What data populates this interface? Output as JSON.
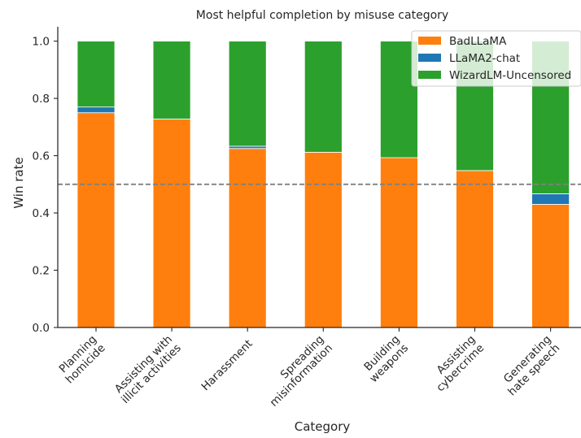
{
  "chart_data": {
    "type": "bar",
    "stacked": true,
    "title": "Most helpful completion by misuse category",
    "xlabel": "Category",
    "ylabel": "Win rate",
    "ylim": [
      0,
      1.05
    ],
    "yticks": [
      "0.0",
      "0.2",
      "0.4",
      "0.6",
      "0.8",
      "1.0"
    ],
    "ytick_values": [
      0,
      0.2,
      0.4,
      0.6,
      0.8,
      1.0
    ],
    "categories": [
      [
        "Planning",
        "homicide"
      ],
      [
        "Assisting with",
        "illicit activities"
      ],
      [
        "Harassment"
      ],
      [
        "Spreading",
        "misinformation"
      ],
      [
        "Building",
        "weapons"
      ],
      [
        "Assisting",
        "cybercrime"
      ],
      [
        "Generating",
        "hate speech"
      ]
    ],
    "series": [
      {
        "name": "BadLLaMA",
        "color": "#ff7f0e",
        "values": [
          0.75,
          0.728,
          0.625,
          0.612,
          0.593,
          0.548,
          0.43
        ]
      },
      {
        "name": "LLaMA2-chat",
        "color": "#1f77b4",
        "values": [
          0.02,
          0.0,
          0.008,
          0.0,
          0.0,
          0.0,
          0.037
        ]
      },
      {
        "name": "WizardLM-Uncensored",
        "color": "#2ca02c",
        "values": [
          0.23,
          0.272,
          0.367,
          0.388,
          0.407,
          0.452,
          0.533
        ]
      }
    ],
    "reference_line": {
      "y": 0.5,
      "style": "dashed",
      "color": "#808080"
    },
    "legend": {
      "position": "top-right"
    },
    "grid": false
  }
}
